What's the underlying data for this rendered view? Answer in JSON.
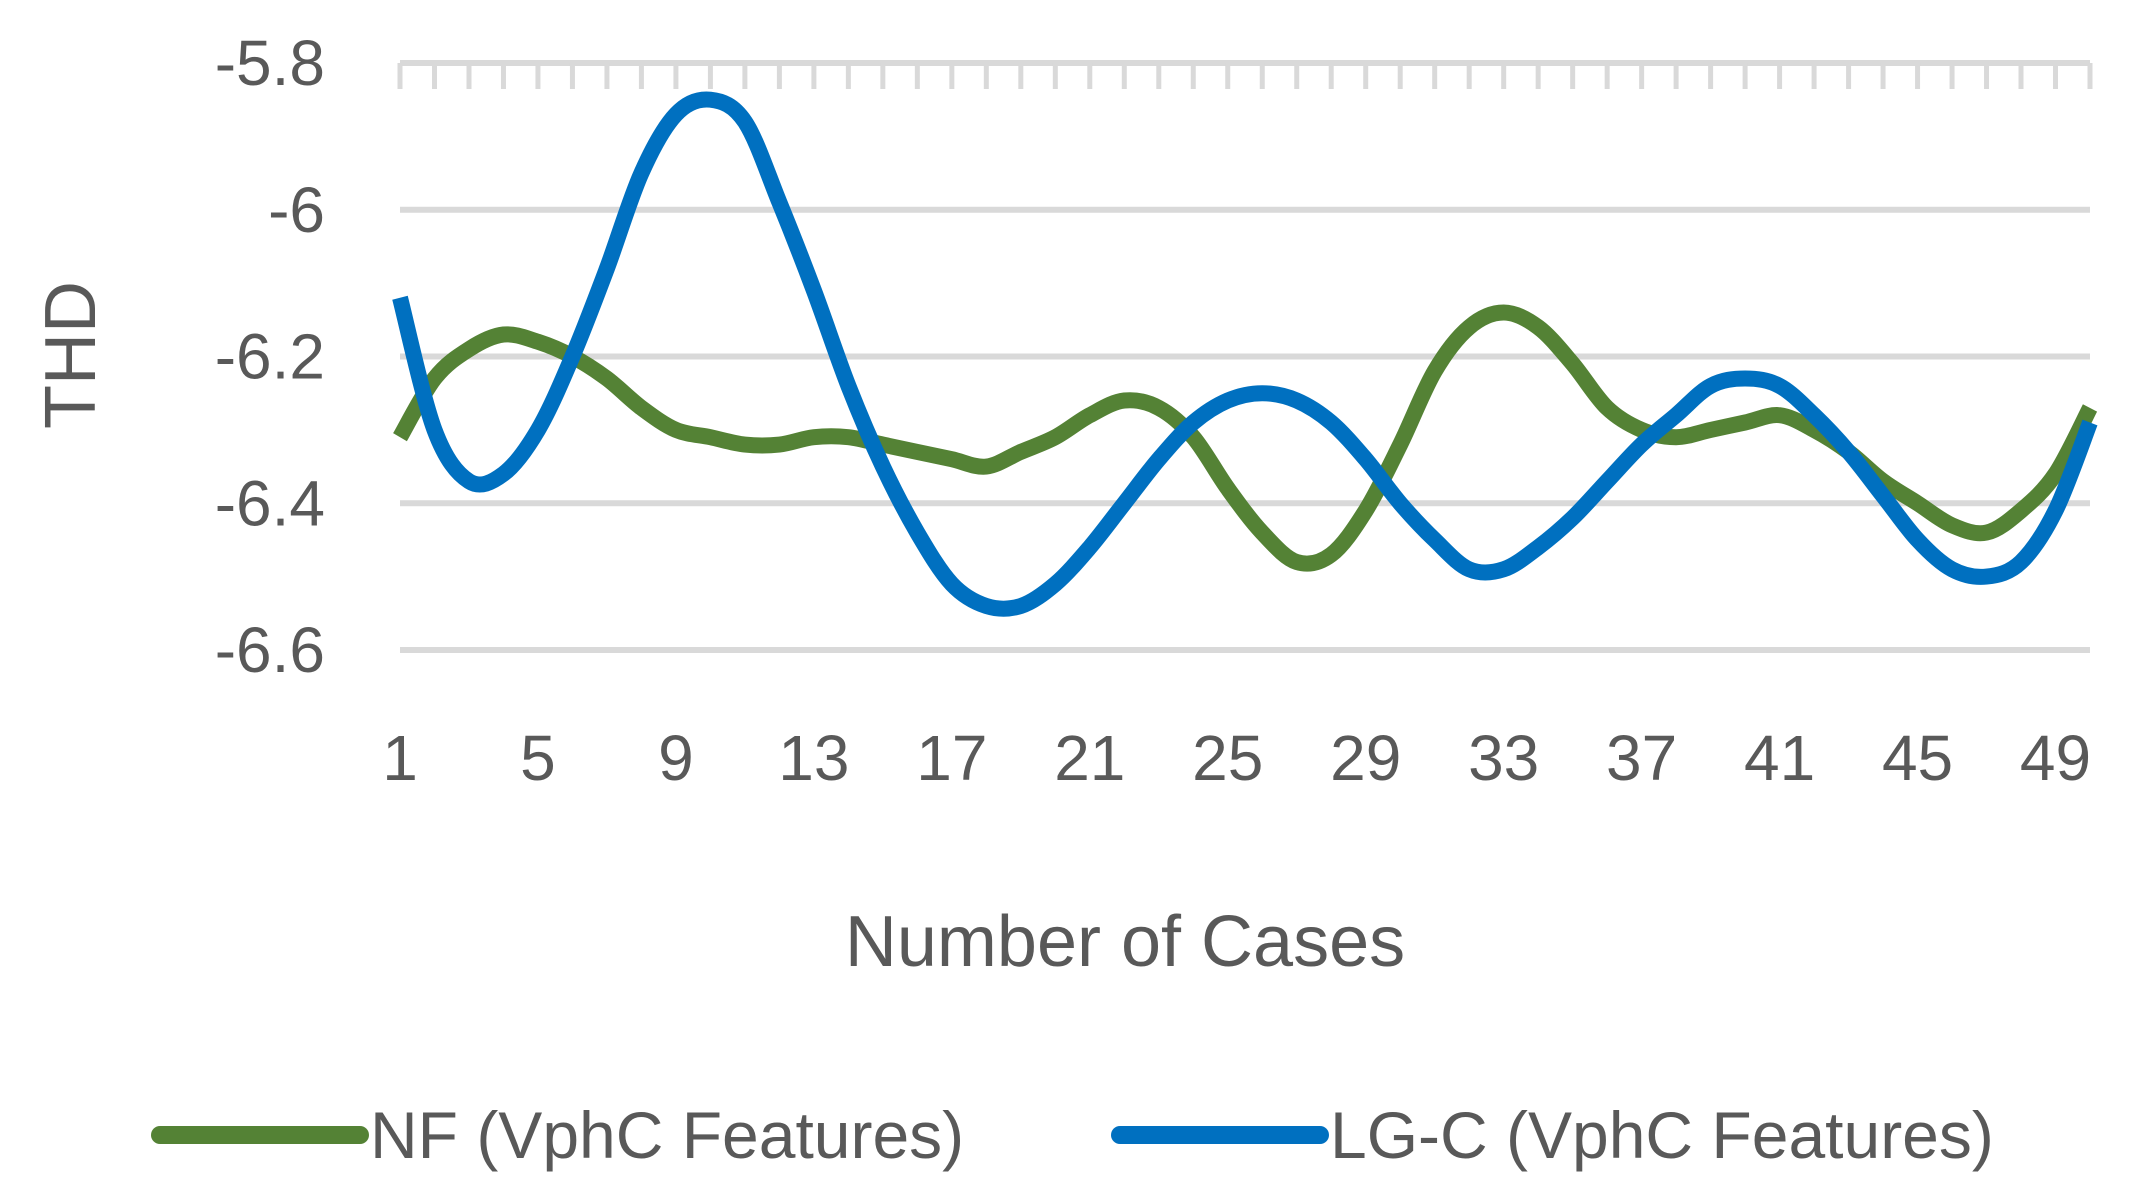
{
  "chart_data": {
    "type": "line",
    "title": "",
    "xlabel": "Number of Cases",
    "ylabel": "THD",
    "x": [
      1,
      2,
      3,
      4,
      5,
      6,
      7,
      8,
      9,
      10,
      11,
      12,
      13,
      14,
      15,
      16,
      17,
      18,
      19,
      20,
      21,
      22,
      23,
      24,
      25,
      26,
      27,
      28,
      29,
      30,
      31,
      32,
      33,
      34,
      35,
      36,
      37,
      38,
      39,
      40,
      41,
      42,
      43,
      44,
      45,
      46,
      47,
      48,
      49,
      50
    ],
    "x_tick_labels": [
      "1",
      "5",
      "9",
      "13",
      "17",
      "21",
      "25",
      "29",
      "33",
      "37",
      "41",
      "45",
      "49"
    ],
    "x_tick_values": [
      1,
      5,
      9,
      13,
      17,
      21,
      25,
      29,
      33,
      37,
      41,
      45,
      49
    ],
    "y_tick_labels": [
      "-5.8",
      "-6",
      "-6.2",
      "-6.4",
      "-6.6"
    ],
    "y_tick_values": [
      -5.8,
      -6.0,
      -6.2,
      -6.4,
      -6.6
    ],
    "ylim": [
      -6.6,
      -5.8
    ],
    "xlim": [
      1,
      50
    ],
    "grid": true,
    "legend_position": "bottom",
    "series": [
      {
        "name": "NF (VphC Features)",
        "color": "#548235",
        "values": [
          -6.31,
          -6.23,
          -6.19,
          -6.17,
          -6.18,
          -6.2,
          -6.23,
          -6.27,
          -6.3,
          -6.31,
          -6.32,
          -6.32,
          -6.31,
          -6.31,
          -6.32,
          -6.33,
          -6.34,
          -6.35,
          -6.33,
          -6.31,
          -6.28,
          -6.26,
          -6.27,
          -6.31,
          -6.38,
          -6.44,
          -6.48,
          -6.47,
          -6.41,
          -6.32,
          -6.22,
          -6.16,
          -6.14,
          -6.16,
          -6.21,
          -6.27,
          -6.3,
          -6.31,
          -6.3,
          -6.29,
          -6.28,
          -6.3,
          -6.33,
          -6.37,
          -6.4,
          -6.43,
          -6.44,
          -6.41,
          -6.36,
          -6.27
        ]
      },
      {
        "name": "LG-C (VphC Features)",
        "color": "#0070C0",
        "values": [
          -6.12,
          -6.3,
          -6.37,
          -6.36,
          -6.3,
          -6.2,
          -6.08,
          -5.95,
          -5.87,
          -5.85,
          -5.88,
          -5.99,
          -6.11,
          -6.24,
          -6.35,
          -6.44,
          -6.51,
          -6.54,
          -6.54,
          -6.51,
          -6.46,
          -6.4,
          -6.34,
          -6.29,
          -6.26,
          -6.25,
          -6.26,
          -6.29,
          -6.34,
          -6.4,
          -6.45,
          -6.49,
          -6.49,
          -6.46,
          -6.42,
          -6.37,
          -6.32,
          -6.28,
          -6.24,
          -6.23,
          -6.24,
          -6.28,
          -6.33,
          -6.39,
          -6.45,
          -6.49,
          -6.5,
          -6.48,
          -6.41,
          -6.29
        ]
      }
    ]
  }
}
